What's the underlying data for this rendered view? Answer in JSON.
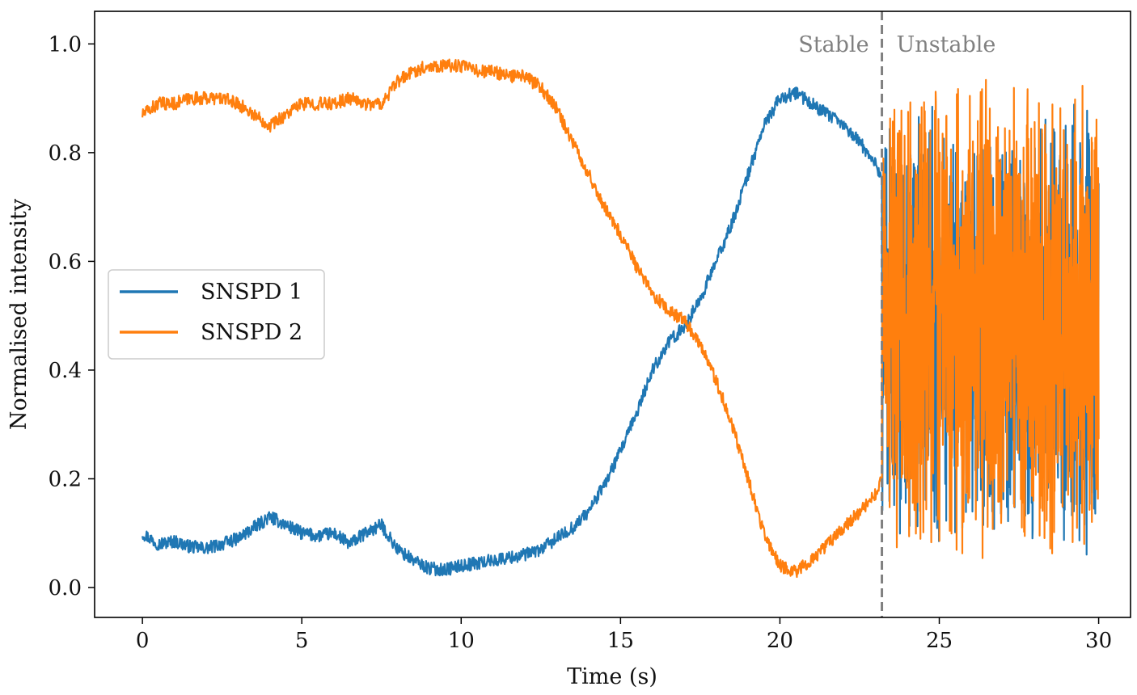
{
  "chart_data": {
    "type": "line",
    "title": "",
    "xlabel": "Time (s)",
    "ylabel": "Normalised intensity",
    "xlim": [
      -1.5,
      31.0
    ],
    "ylim": [
      -0.055,
      1.06
    ],
    "xticks": [
      0,
      5,
      10,
      15,
      20,
      25,
      30
    ],
    "xtick_labels": [
      "0",
      "5",
      "10",
      "15",
      "20",
      "25",
      "30"
    ],
    "yticks": [
      0.0,
      0.2,
      0.4,
      0.6,
      0.8,
      1.0
    ],
    "ytick_labels": [
      "0.0",
      "0.2",
      "0.4",
      "0.6",
      "0.8",
      "1.0"
    ],
    "grid": false,
    "legend": {
      "location": "center-left",
      "entries": [
        "SNSPD 1",
        "SNSPD 2"
      ]
    },
    "annotations": {
      "divider_x": 23.2,
      "divider_style": "dashed",
      "divider_color": "#808080",
      "left_label": "Stable",
      "right_label": "Unstable"
    },
    "series": [
      {
        "name": "SNSPD 1",
        "color": "#1f77b4",
        "x": [
          0,
          0.5,
          1,
          1.5,
          2,
          2.5,
          3,
          3.5,
          4,
          4.5,
          5,
          5.5,
          6,
          6.5,
          7,
          7.5,
          8,
          8.5,
          9,
          9.5,
          10,
          10.5,
          11,
          11.5,
          12,
          12.5,
          13,
          13.5,
          14,
          14.5,
          15,
          15.5,
          16,
          16.5,
          17,
          17.5,
          18,
          18.5,
          19,
          19.5,
          20,
          20.5,
          21,
          21.5,
          22,
          22.5,
          23,
          23.2
        ],
        "values": [
          0.1,
          0.08,
          0.085,
          0.075,
          0.072,
          0.08,
          0.09,
          0.11,
          0.13,
          0.115,
          0.1,
          0.095,
          0.1,
          0.08,
          0.1,
          0.115,
          0.07,
          0.05,
          0.035,
          0.033,
          0.04,
          0.045,
          0.05,
          0.055,
          0.06,
          0.07,
          0.09,
          0.11,
          0.14,
          0.19,
          0.25,
          0.32,
          0.4,
          0.45,
          0.48,
          0.53,
          0.6,
          0.67,
          0.76,
          0.85,
          0.9,
          0.91,
          0.89,
          0.87,
          0.85,
          0.82,
          0.78,
          0.75
        ],
        "unstable_range": [
          0.05,
          0.9
        ],
        "noise": 0.012
      },
      {
        "name": "SNSPD 2",
        "color": "#ff7f0e",
        "x": [
          0,
          0.5,
          1,
          1.5,
          2,
          2.5,
          3,
          3.5,
          4,
          4.5,
          5,
          5.5,
          6,
          6.5,
          7,
          7.5,
          8,
          8.5,
          9,
          9.5,
          10,
          10.5,
          11,
          11.5,
          12,
          12.5,
          13,
          13.5,
          14,
          14.5,
          15,
          15.5,
          16,
          16.5,
          17,
          17.5,
          18,
          18.5,
          19,
          19.5,
          20,
          20.5,
          21,
          21.5,
          22,
          22.5,
          23,
          23.2
        ],
        "values": [
          0.87,
          0.89,
          0.89,
          0.9,
          0.9,
          0.9,
          0.89,
          0.87,
          0.85,
          0.87,
          0.89,
          0.89,
          0.89,
          0.9,
          0.89,
          0.89,
          0.93,
          0.95,
          0.96,
          0.96,
          0.96,
          0.95,
          0.95,
          0.94,
          0.94,
          0.92,
          0.88,
          0.82,
          0.76,
          0.7,
          0.65,
          0.59,
          0.54,
          0.51,
          0.49,
          0.45,
          0.38,
          0.3,
          0.2,
          0.1,
          0.04,
          0.03,
          0.05,
          0.08,
          0.11,
          0.14,
          0.17,
          0.2
        ],
        "unstable_range": [
          0.04,
          0.95
        ],
        "noise": 0.012
      }
    ]
  }
}
